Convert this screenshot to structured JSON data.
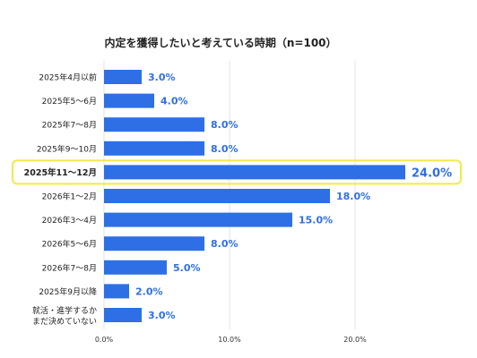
{
  "chart_data": {
    "type": "bar",
    "orientation": "horizontal",
    "title": "内定を獲得したいと考えている時期（n=100）",
    "categories": [
      "2025年4月以前",
      "2025年5〜6月",
      "2025年7〜8月",
      "2025年9〜10月",
      "2025年11〜12月",
      "2026年1〜2月",
      "2026年3〜4月",
      "2026年5〜6月",
      "2026年7〜8月",
      "2025年9月以降",
      [
        "就活・進学するか",
        "まだ決めていない"
      ]
    ],
    "values": [
      3.0,
      4.0,
      8.0,
      8.0,
      24.0,
      18.0,
      15.0,
      8.0,
      5.0,
      2.0,
      3.0
    ],
    "value_labels": [
      "3.0%",
      "4.0%",
      "8.0%",
      "8.0%",
      "24.0%",
      "18.0%",
      "15.0%",
      "8.0%",
      "5.0%",
      "2.0%",
      "3.0%"
    ],
    "xlim": [
      0,
      28
    ],
    "xticks": [
      0,
      10,
      20
    ],
    "xtick_labels": [
      "0.0%",
      "10.0%",
      "20.0%"
    ],
    "highlight_index": 4,
    "grid": "vertical",
    "xlabel": "",
    "ylabel": "",
    "colors": {
      "bar": "#2e6fe6",
      "label": "#2e6fe6",
      "highlight_border": "#f2e84b",
      "grid": "#e3e3e3",
      "text": "#222222"
    }
  }
}
